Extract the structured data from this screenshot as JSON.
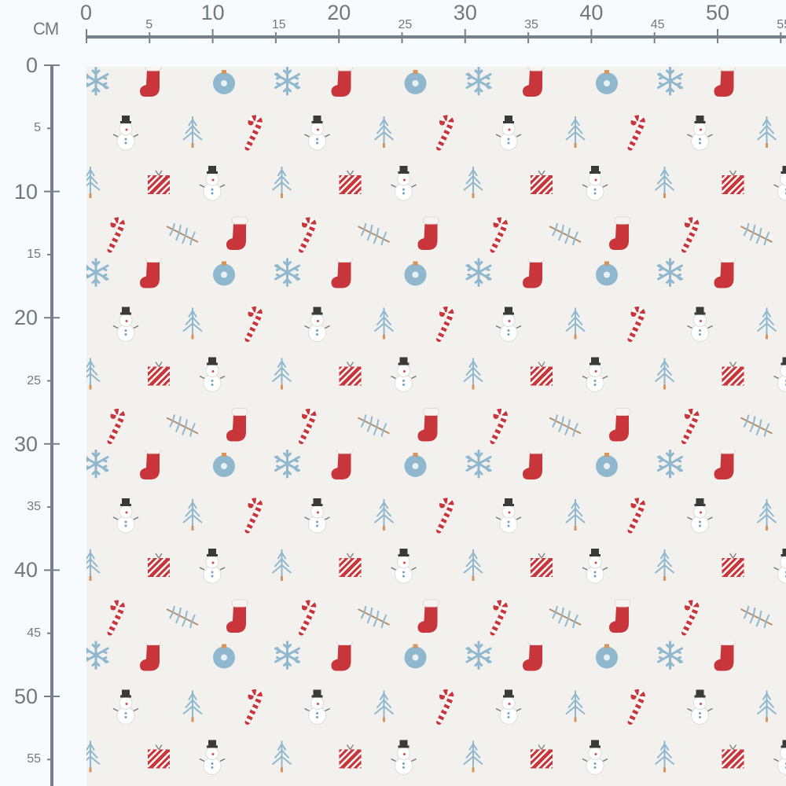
{
  "unit_label": "CM",
  "ruler_top": {
    "labels": [
      "0",
      "5",
      "10",
      "15",
      "20",
      "25",
      "30",
      "35",
      "40",
      "45",
      "50",
      "55"
    ]
  },
  "ruler_left": {
    "labels": [
      "0",
      "5",
      "10",
      "15",
      "20",
      "25",
      "30",
      "35",
      "40",
      "45",
      "50",
      "55"
    ]
  },
  "fabric": {
    "background": "#f3f1ee",
    "motifs": [
      "snowflake-icon",
      "stocking-icon",
      "ornament-icon",
      "snowman-icon",
      "tree-icon",
      "candy-cane-icon",
      "gift-icon",
      "pine-branch-icon"
    ],
    "colors": {
      "red": "#c8353a",
      "blue": "#8fb8cf",
      "ruler": "#76808a"
    }
  }
}
